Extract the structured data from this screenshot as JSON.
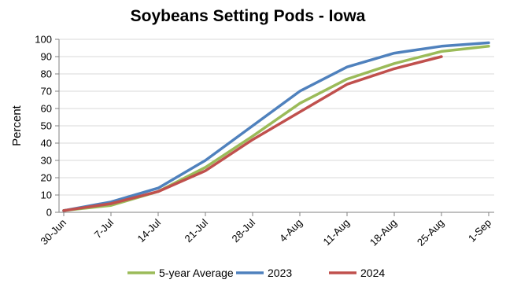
{
  "chart_data": {
    "type": "line",
    "title": "Soybeans Setting Pods - Iowa",
    "xlabel": "",
    "ylabel": "Percent",
    "ylim": [
      0,
      100
    ],
    "yticks": [
      0,
      10,
      20,
      30,
      40,
      50,
      60,
      70,
      80,
      90,
      100
    ],
    "categories": [
      "30-Jun",
      "7-Jul",
      "14-Jul",
      "21-Jul",
      "28-Jul",
      "4-Aug",
      "11-Aug",
      "18-Aug",
      "25-Aug",
      "1-Sep"
    ],
    "grid": true,
    "legend_position": "bottom",
    "series": [
      {
        "name": "5-year Average",
        "color": "#9bbb59",
        "values": [
          1,
          4,
          12,
          26,
          44,
          63,
          77,
          86,
          93,
          96
        ]
      },
      {
        "name": "2023",
        "color": "#4f81bd",
        "values": [
          1,
          6,
          14,
          30,
          50,
          70,
          84,
          92,
          96,
          98
        ]
      },
      {
        "name": "2024",
        "color": "#c0504d",
        "values": [
          1,
          5,
          12,
          24,
          42,
          58,
          74,
          83,
          90,
          null
        ]
      }
    ]
  }
}
